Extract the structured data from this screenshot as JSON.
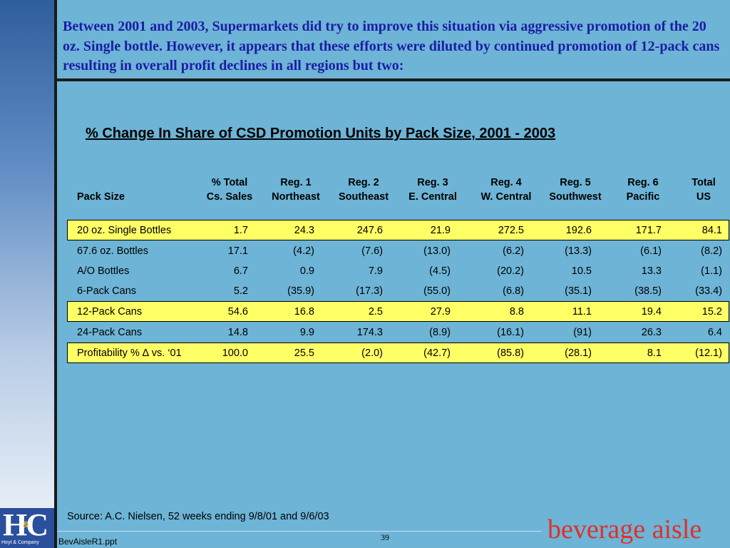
{
  "headline": "Between 2001 and 2003, Supermarkets did try to improve this situation via aggressive promotion of the 20 oz. Single bottle.  However, it appears that these efforts were diluted by continued promotion of 12-pack cans resulting in overall profit declines in all regions but two:",
  "chart_title": "% Change In Share of CSD Promotion Units by Pack Size, 2001 - 2003",
  "table": {
    "columns": [
      {
        "line1": "",
        "line2": "Pack Size"
      },
      {
        "line1": "% Total",
        "line2": "Cs. Sales"
      },
      {
        "line1": "Reg. 1",
        "line2": "Northeast"
      },
      {
        "line1": "Reg. 2",
        "line2": "Southeast"
      },
      {
        "line1": "Reg. 3",
        "line2": "E. Central"
      },
      {
        "line1": "Reg. 4",
        "line2": "W. Central"
      },
      {
        "line1": "Reg. 5",
        "line2": "Southwest"
      },
      {
        "line1": "Reg. 6",
        "line2": "Pacific"
      },
      {
        "line1": "Total",
        "line2": "US"
      }
    ],
    "rows": [
      {
        "highlight": true,
        "cells": [
          "20 oz. Single Bottles",
          "1.7",
          "24.3",
          "247.6",
          "21.9",
          "272.5",
          "192.6",
          "171.7",
          "84.1"
        ]
      },
      {
        "highlight": false,
        "cells": [
          "67.6 oz. Bottles",
          "17.1",
          "(4.2)",
          "(7.6)",
          "(13.0)",
          "(6.2)",
          "(13.3)",
          "(6.1)",
          "(8.2)"
        ]
      },
      {
        "highlight": false,
        "cells": [
          "A/O Bottles",
          "6.7",
          "0.9",
          "7.9",
          "(4.5)",
          "(20.2)",
          "10.5",
          "13.3",
          "(1.1)"
        ]
      },
      {
        "highlight": false,
        "cells": [
          "6-Pack Cans",
          "5.2",
          "(35.9)",
          "(17.3)",
          "(55.0)",
          "(6.8)",
          "(35.1)",
          "(38.5)",
          "(33.4)"
        ]
      },
      {
        "highlight": true,
        "cells": [
          "12-Pack Cans",
          "54.6",
          "16.8",
          "2.5",
          "27.9",
          "8.8",
          "11.1",
          "19.4",
          "15.2"
        ]
      },
      {
        "highlight": false,
        "cells": [
          "24-Pack Cans",
          "14.8",
          "9.9",
          "174.3",
          "(8.9)",
          "(16.1)",
          "(91)",
          "26.3",
          "6.4"
        ]
      },
      {
        "highlight": true,
        "cells": [
          "Profitability % ∆ vs. ‘01",
          "100.0",
          "25.5",
          "(2.0)",
          "(42.7)",
          "(85.8)",
          "(28.1)",
          "8.1",
          "(12.1)"
        ]
      }
    ]
  },
  "source": "Source:  A.C. Nielsen, 52 weeks ending 9/8/01 and 9/6/03",
  "page_number": "39",
  "filename": "BevAisleR1.ppt",
  "logo": {
    "letters": "HC",
    "amp": "&",
    "company": "Hoyt & Company"
  },
  "brand": "beverage aisle",
  "colors": {
    "background": "#6db4d6",
    "headline": "#1c1ca6",
    "highlight": "#ffff66",
    "brand": "#e0302a"
  }
}
